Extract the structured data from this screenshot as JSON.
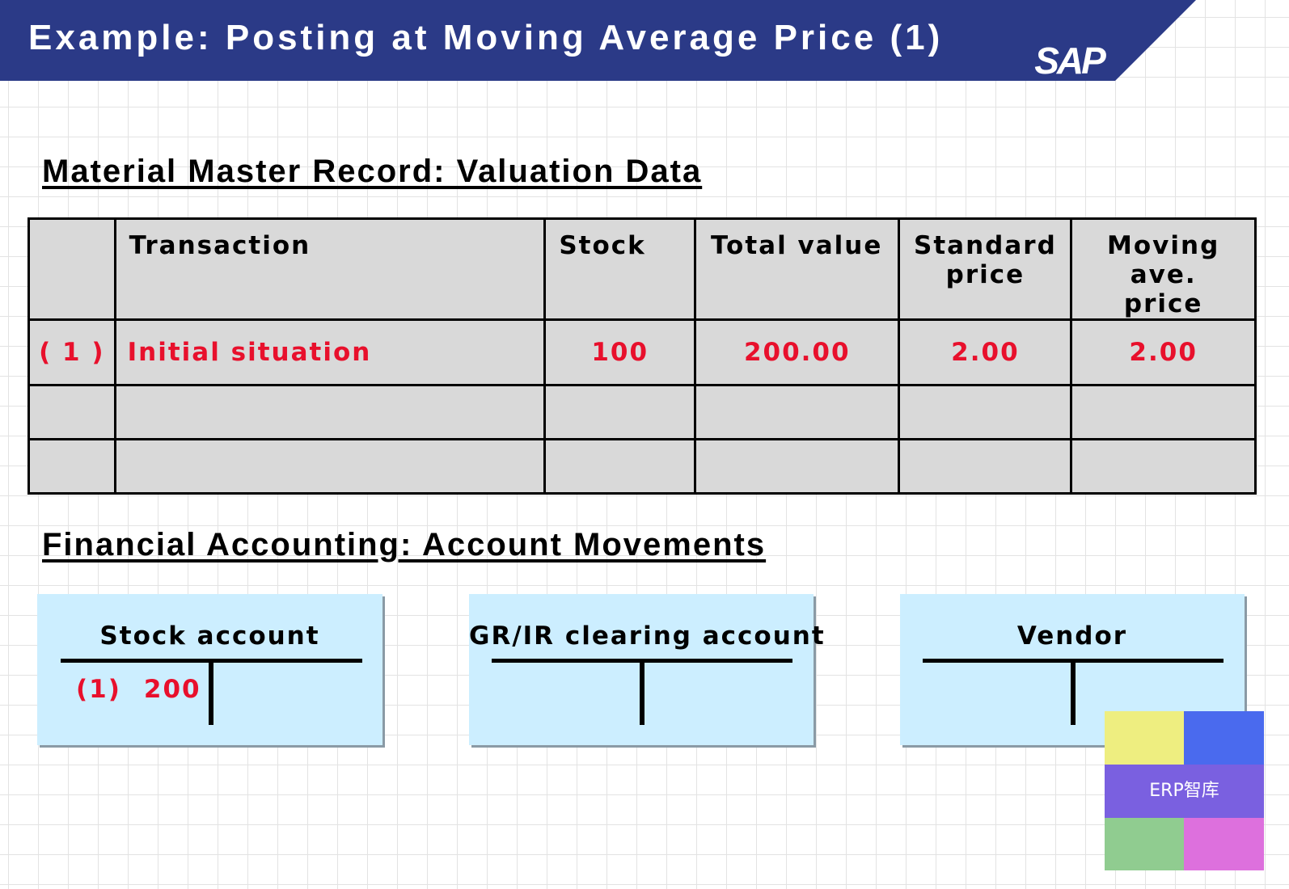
{
  "header": {
    "title": "Example: Posting at Moving Average Price (1)",
    "logo": "SAP",
    "background": "#2b3a87"
  },
  "valuation": {
    "title": "Material Master Record: Valuation Data",
    "columns": {
      "transaction": "Transaction",
      "stock": "Stock",
      "total_value": "Total value",
      "standard_price_1": "Standard",
      "standard_price_2": "price",
      "moving_price_1": "Moving ave.",
      "moving_price_2": "price"
    },
    "rows": [
      {
        "num": "( 1 )",
        "transaction": "Initial situation",
        "stock": "100",
        "total_value": "200.00",
        "standard_price": "2.00",
        "moving_price": "2.00"
      }
    ],
    "highlight_color": "#e8102c"
  },
  "accounting": {
    "title": "Financial Accounting: Account Movements",
    "accounts": [
      {
        "title": "Stock account",
        "debit_ref": "(1)",
        "debit_amount": "200"
      },
      {
        "title": "GR/IR clearing account"
      },
      {
        "title": "Vendor"
      }
    ],
    "box_color": "#cceeff"
  },
  "watermark": {
    "text": "ERP智库",
    "colors": [
      "#eeee80",
      "#4a6aee",
      "#7a60e0",
      "#90cc90",
      "#dd70dd"
    ]
  }
}
